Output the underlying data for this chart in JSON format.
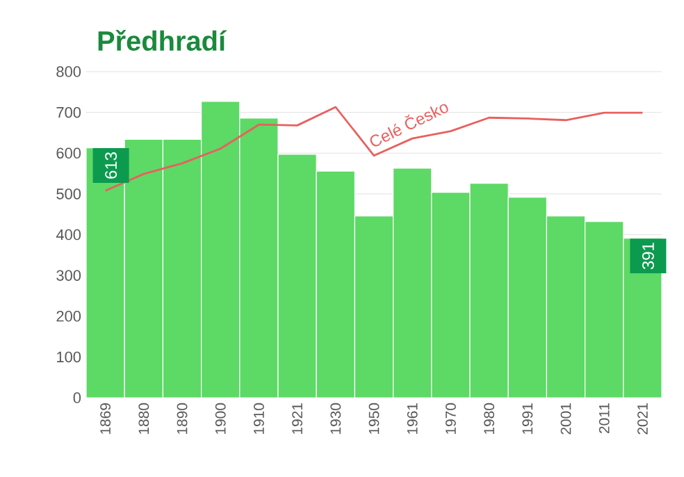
{
  "chart_data": {
    "type": "bar",
    "title": "Předhradí",
    "categories": [
      "1869",
      "1880",
      "1890",
      "1900",
      "1910",
      "1921",
      "1930",
      "1950",
      "1961",
      "1970",
      "1980",
      "1991",
      "2001",
      "2011",
      "2021"
    ],
    "series": [
      {
        "type": "bar",
        "color": "#5dd966",
        "values": [
          613,
          634,
          634,
          727,
          686,
          597,
          556,
          446,
          563,
          504,
          526,
          492,
          446,
          432,
          391
        ],
        "value_labels": [
          "613",
          null,
          null,
          null,
          null,
          null,
          null,
          null,
          null,
          null,
          null,
          null,
          null,
          null,
          "391"
        ]
      },
      {
        "type": "line",
        "name": "Celé Česko",
        "color": "#e8605e",
        "values": [
          508,
          549,
          575,
          611,
          670,
          668,
          713,
          594,
          636,
          654,
          687,
          685,
          681,
          699,
          699
        ]
      }
    ],
    "ylim": [
      0,
      800
    ],
    "yticks": [
      0,
      100,
      200,
      300,
      400,
      500,
      600,
      700,
      800
    ],
    "grid": "y"
  }
}
